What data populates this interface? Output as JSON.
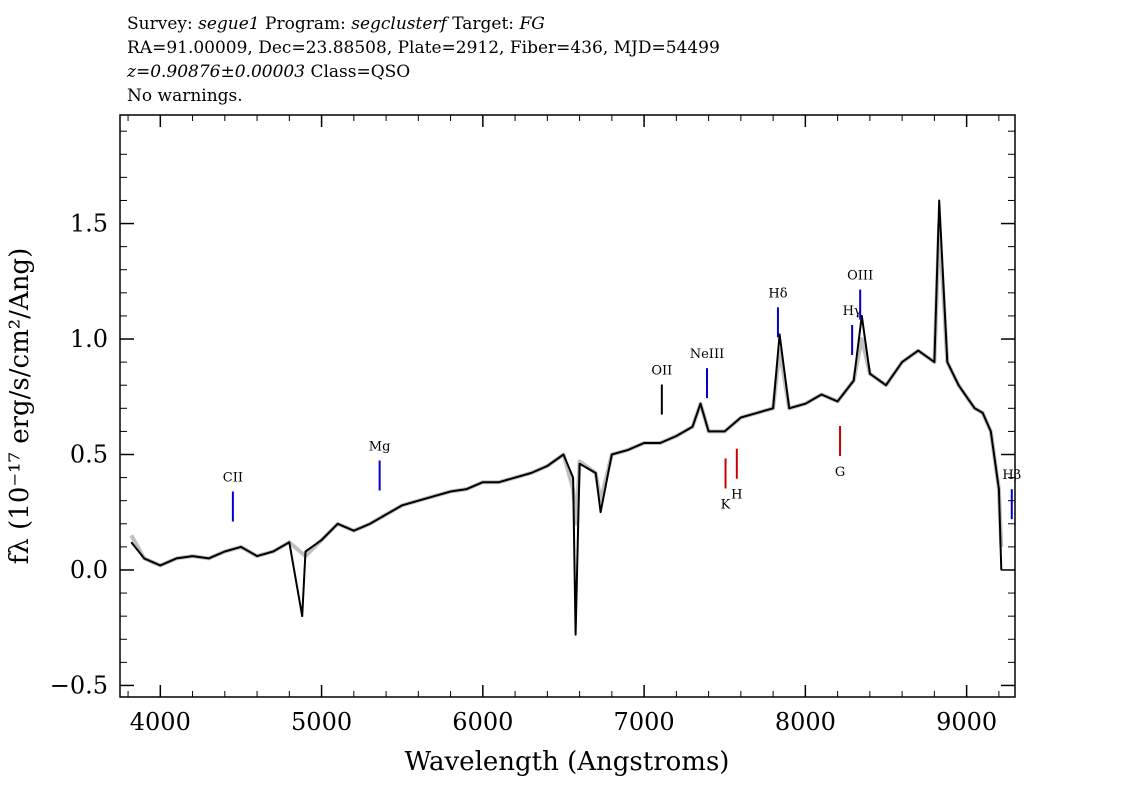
{
  "header": {
    "survey_label": "Survey: ",
    "survey": "segue1",
    "program_label": " Program: ",
    "program": "segclusterf",
    "target_label": " Target: ",
    "target": "FG",
    "line2": "RA=91.00009, Dec=23.88508, Plate=2912, Fiber=436, MJD=54499",
    "redshift": "z=0.90876±0.00003",
    "class": " Class=QSO",
    "warnings": "No warnings."
  },
  "chart_data": {
    "type": "line",
    "title": "",
    "xlabel": "Wavelength (Angstroms)",
    "ylabel": "fλ (10⁻¹⁷ erg/s/cm²/Ang)",
    "xlim": [
      3750,
      9300
    ],
    "ylim": [
      -0.55,
      1.97
    ],
    "x_ticks": [
      4000,
      5000,
      6000,
      7000,
      8000,
      9000
    ],
    "y_ticks": [
      -0.5,
      0.0,
      0.5,
      1.0,
      1.5
    ],
    "y_tick_labels": [
      "−0.5",
      "0.0",
      "0.5",
      "1.0",
      "1.5"
    ],
    "grid": false,
    "series": [
      {
        "color": "#c0c0c0",
        "x": [
          3820,
          3900,
          4000,
          4100,
          4200,
          4300,
          4400,
          4500,
          4600,
          4700,
          4800,
          4900,
          5000,
          5100,
          5200,
          5300,
          5400,
          5500,
          5600,
          5700,
          5800,
          5900,
          6000,
          6100,
          6200,
          6300,
          6400,
          6500,
          6560,
          6580,
          6600,
          6700,
          6730,
          6800,
          6900,
          7000,
          7100,
          7200,
          7300,
          7350,
          7400,
          7500,
          7600,
          7700,
          7800,
          7840,
          7900,
          8000,
          8100,
          8200,
          8300,
          8350,
          8400,
          8500,
          8600,
          8700,
          8800,
          8830,
          8880,
          8950,
          9000,
          9050,
          9100,
          9150,
          9200,
          9215
        ],
        "y": [
          0.15,
          0.05,
          0.02,
          0.05,
          0.06,
          0.05,
          0.08,
          0.1,
          0.06,
          0.08,
          0.12,
          0.06,
          0.13,
          0.2,
          0.17,
          0.2,
          0.24,
          0.28,
          0.3,
          0.32,
          0.34,
          0.35,
          0.38,
          0.38,
          0.4,
          0.42,
          0.45,
          0.5,
          0.35,
          0.2,
          0.47,
          0.42,
          0.3,
          0.5,
          0.52,
          0.55,
          0.55,
          0.58,
          0.62,
          0.72,
          0.6,
          0.6,
          0.66,
          0.68,
          0.7,
          0.95,
          0.7,
          0.72,
          0.76,
          0.73,
          0.82,
          1.0,
          0.85,
          0.8,
          0.9,
          0.95,
          0.9,
          1.5,
          0.9,
          0.8,
          0.75,
          0.7,
          0.68,
          0.6,
          0.35,
          0.1
        ]
      },
      {
        "color": "#000000",
        "x": [
          3820,
          3900,
          4000,
          4100,
          4200,
          4300,
          4400,
          4500,
          4600,
          4700,
          4800,
          4880,
          4900,
          5000,
          5100,
          5200,
          5300,
          5400,
          5500,
          5600,
          5700,
          5800,
          5900,
          6000,
          6100,
          6200,
          6300,
          6400,
          6500,
          6560,
          6575,
          6600,
          6700,
          6730,
          6800,
          6900,
          7000,
          7100,
          7200,
          7300,
          7350,
          7400,
          7500,
          7600,
          7700,
          7800,
          7840,
          7900,
          8000,
          8100,
          8200,
          8300,
          8350,
          8400,
          8500,
          8600,
          8700,
          8800,
          8830,
          8880,
          8950,
          9000,
          9050,
          9100,
          9150,
          9200,
          9215
        ],
        "y": [
          0.12,
          0.05,
          0.02,
          0.05,
          0.06,
          0.05,
          0.08,
          0.1,
          0.06,
          0.08,
          0.12,
          -0.2,
          0.08,
          0.13,
          0.2,
          0.17,
          0.2,
          0.24,
          0.28,
          0.3,
          0.32,
          0.34,
          0.35,
          0.38,
          0.38,
          0.4,
          0.42,
          0.45,
          0.5,
          0.4,
          -0.28,
          0.46,
          0.42,
          0.25,
          0.5,
          0.52,
          0.55,
          0.55,
          0.58,
          0.62,
          0.72,
          0.6,
          0.6,
          0.66,
          0.68,
          0.7,
          1.02,
          0.7,
          0.72,
          0.76,
          0.73,
          0.82,
          1.1,
          0.85,
          0.8,
          0.9,
          0.95,
          0.9,
          1.6,
          0.9,
          0.8,
          0.75,
          0.7,
          0.68,
          0.6,
          0.35,
          0.0
        ]
      }
    ],
    "emission_lines": [
      {
        "label": "CII",
        "x": 4450,
        "color": "#0000cc"
      },
      {
        "label": "Mg",
        "x": 5360,
        "color": "#0000cc"
      },
      {
        "label": "OII",
        "x": 7110,
        "color": "#000000"
      },
      {
        "label": "NeIII",
        "x": 7390,
        "color": "#0000cc"
      },
      {
        "label": "Hδ",
        "x": 7830,
        "color": "#0000cc"
      },
      {
        "label": "Hγ",
        "x": 8290,
        "color": "#0000cc"
      },
      {
        "label": "OIII",
        "x": 8340,
        "color": "#0000cc"
      },
      {
        "label": "Hβ",
        "x": 9280,
        "color": "#0000cc"
      }
    ],
    "absorption_lines": [
      {
        "label": "K",
        "x": 7505,
        "color": "#cc0000"
      },
      {
        "label": "H",
        "x": 7575,
        "color": "#cc0000"
      },
      {
        "label": "G",
        "x": 8215,
        "color": "#cc0000"
      }
    ]
  }
}
